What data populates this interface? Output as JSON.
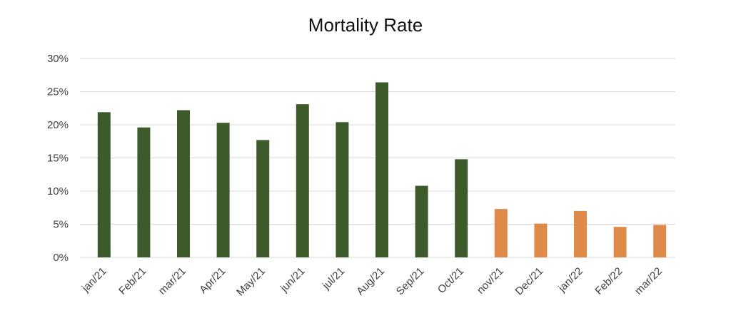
{
  "chart_data": {
    "type": "bar",
    "title": "Mortality Rate",
    "xlabel": "",
    "ylabel": "",
    "ylim": [
      0,
      0.3
    ],
    "yticks": [
      0,
      0.05,
      0.1,
      0.15,
      0.2,
      0.25,
      0.3
    ],
    "ytick_labels": [
      "0%",
      "5%",
      "10%",
      "15%",
      "20%",
      "25%",
      "30%"
    ],
    "grid": true,
    "categories": [
      "jan/21",
      "Feb/21",
      "mar/21",
      "Apr/21",
      "May/21",
      "jun/21",
      "jul/21",
      "Aug/21",
      "Sep/21",
      "Oct/21",
      "nov/21",
      "Dec/21",
      "jan/22",
      "Feb/22",
      "mar/22"
    ],
    "values": [
      0.219,
      0.196,
      0.222,
      0.203,
      0.177,
      0.231,
      0.204,
      0.264,
      0.108,
      0.148,
      0.073,
      0.051,
      0.07,
      0.046,
      0.049
    ],
    "bar_colors": [
      "#3d5a2a",
      "#3d5a2a",
      "#3d5a2a",
      "#3d5a2a",
      "#3d5a2a",
      "#3d5a2a",
      "#3d5a2a",
      "#3d5a2a",
      "#3d5a2a",
      "#3d5a2a",
      "#e08a4a",
      "#e08a4a",
      "#e08a4a",
      "#e08a4a",
      "#e08a4a"
    ]
  }
}
